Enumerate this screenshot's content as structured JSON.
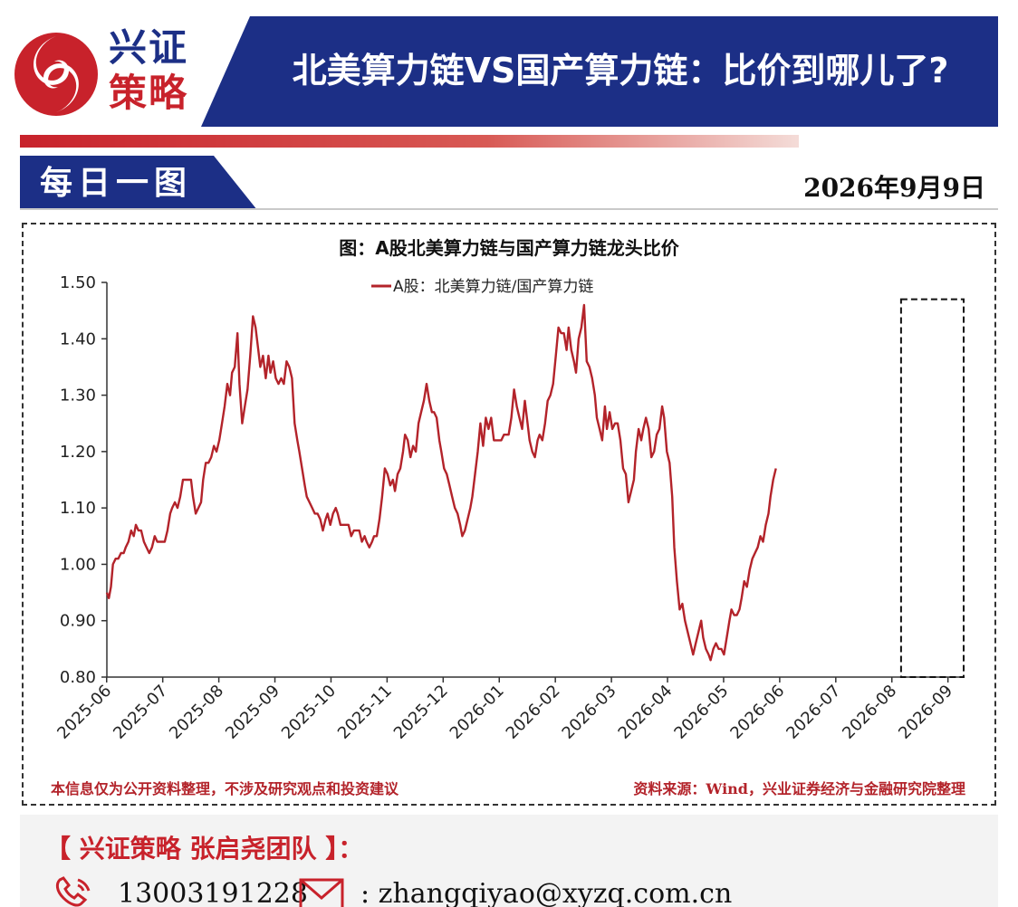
{
  "brand": {
    "line1": "兴证",
    "line2": "策略"
  },
  "header": {
    "title": "北美算力链VS国产算力链：比价到哪儿了?"
  },
  "section": {
    "title": "每日一图",
    "date": "2026年9月9日"
  },
  "colors": {
    "navy": "#1c2f86",
    "red": "#c8222b",
    "line": "#b3232a"
  },
  "footer": {
    "disclaimer": "本信息仅为公开资料整理，不涉及研究观点和投资建议",
    "source": "资料来源：Wind，兴业证券经济与金融研究院整理"
  },
  "contact": {
    "team": "【 兴证策略 张启尧团队 】：",
    "phone": "13003191228",
    "email": ": zhangqiyao@xyzq.com.cn"
  },
  "chart_data": {
    "type": "line",
    "title": "图：A股北美算力链与国产算力链龙头比价",
    "series_name": "A股：北美算力链/国产算力链",
    "ylim": [
      0.8,
      1.5
    ],
    "yticks": [
      "0.80",
      "0.90",
      "1.00",
      "1.10",
      "1.20",
      "1.30",
      "1.40",
      "1.50"
    ],
    "xlim": [
      2025.417,
      2026.69
    ],
    "xticks": [
      "2025-06",
      "2025-07",
      "2025-08",
      "2025-09",
      "2025-10",
      "2025-11",
      "2025-12",
      "2026-01",
      "2026-02",
      "2026-03",
      "2026-04",
      "2026-05",
      "2026-06",
      "2026-07",
      "2026-08",
      "2026-09"
    ],
    "highlight": {
      "x_from": 2026.597,
      "x_to": 2026.69,
      "y_from": 0.8,
      "y_to": 1.47
    },
    "points": [
      [
        2025.417,
        0.95
      ],
      [
        2025.42,
        0.94
      ],
      [
        2025.423,
        0.96
      ],
      [
        2025.426,
        1.0
      ],
      [
        2025.43,
        1.01
      ],
      [
        2025.434,
        1.01
      ],
      [
        2025.438,
        1.02
      ],
      [
        2025.442,
        1.02
      ],
      [
        2025.445,
        1.03
      ],
      [
        2025.449,
        1.04
      ],
      [
        2025.453,
        1.06
      ],
      [
        2025.457,
        1.05
      ],
      [
        2025.46,
        1.07
      ],
      [
        2025.464,
        1.06
      ],
      [
        2025.468,
        1.06
      ],
      [
        2025.472,
        1.04
      ],
      [
        2025.476,
        1.03
      ],
      [
        2025.48,
        1.02
      ],
      [
        2025.484,
        1.03
      ],
      [
        2025.488,
        1.05
      ],
      [
        2025.492,
        1.04
      ],
      [
        2025.496,
        1.04
      ],
      [
        2025.5,
        1.04
      ],
      [
        2025.503,
        1.04
      ],
      [
        2025.507,
        1.06
      ],
      [
        2025.511,
        1.09
      ],
      [
        2025.514,
        1.1
      ],
      [
        2025.518,
        1.11
      ],
      [
        2025.522,
        1.1
      ],
      [
        2025.526,
        1.12
      ],
      [
        2025.53,
        1.15
      ],
      [
        2025.534,
        1.15
      ],
      [
        2025.538,
        1.15
      ],
      [
        2025.542,
        1.15
      ],
      [
        2025.545,
        1.12
      ],
      [
        2025.549,
        1.09
      ],
      [
        2025.553,
        1.1
      ],
      [
        2025.557,
        1.11
      ],
      [
        2025.56,
        1.15
      ],
      [
        2025.564,
        1.18
      ],
      [
        2025.568,
        1.18
      ],
      [
        2025.572,
        1.19
      ],
      [
        2025.576,
        1.21
      ],
      [
        2025.58,
        1.2
      ],
      [
        2025.584,
        1.22
      ],
      [
        2025.588,
        1.25
      ],
      [
        2025.592,
        1.28
      ],
      [
        2025.596,
        1.32
      ],
      [
        2025.6,
        1.3
      ],
      [
        2025.603,
        1.34
      ],
      [
        2025.607,
        1.35
      ],
      [
        2025.611,
        1.41
      ],
      [
        2025.614,
        1.32
      ],
      [
        2025.618,
        1.25
      ],
      [
        2025.622,
        1.28
      ],
      [
        2025.626,
        1.31
      ],
      [
        2025.63,
        1.37
      ],
      [
        2025.634,
        1.44
      ],
      [
        2025.638,
        1.42
      ],
      [
        2025.642,
        1.38
      ],
      [
        2025.645,
        1.35
      ],
      [
        2025.649,
        1.37
      ],
      [
        2025.653,
        1.33
      ],
      [
        2025.657,
        1.37
      ],
      [
        2025.66,
        1.34
      ],
      [
        2025.664,
        1.36
      ],
      [
        2025.668,
        1.33
      ],
      [
        2025.672,
        1.32
      ],
      [
        2025.676,
        1.33
      ],
      [
        2025.68,
        1.32
      ],
      [
        2025.684,
        1.36
      ],
      [
        2025.688,
        1.35
      ],
      [
        2025.692,
        1.33
      ],
      [
        2025.696,
        1.25
      ],
      [
        2025.7,
        1.22
      ],
      [
        2025.703,
        1.2
      ],
      [
        2025.707,
        1.17
      ],
      [
        2025.711,
        1.14
      ],
      [
        2025.714,
        1.12
      ],
      [
        2025.718,
        1.11
      ],
      [
        2025.722,
        1.1
      ],
      [
        2025.726,
        1.09
      ],
      [
        2025.73,
        1.09
      ],
      [
        2025.734,
        1.08
      ],
      [
        2025.738,
        1.06
      ],
      [
        2025.742,
        1.08
      ],
      [
        2025.745,
        1.09
      ],
      [
        2025.749,
        1.07
      ],
      [
        2025.753,
        1.09
      ],
      [
        2025.757,
        1.1
      ],
      [
        2025.76,
        1.09
      ],
      [
        2025.764,
        1.07
      ],
      [
        2025.768,
        1.07
      ],
      [
        2025.772,
        1.07
      ],
      [
        2025.776,
        1.07
      ],
      [
        2025.78,
        1.05
      ],
      [
        2025.784,
        1.06
      ],
      [
        2025.788,
        1.06
      ],
      [
        2025.792,
        1.06
      ],
      [
        2025.796,
        1.04
      ],
      [
        2025.8,
        1.05
      ],
      [
        2025.803,
        1.04
      ],
      [
        2025.807,
        1.03
      ],
      [
        2025.811,
        1.04
      ],
      [
        2025.814,
        1.05
      ],
      [
        2025.818,
        1.05
      ],
      [
        2025.822,
        1.08
      ],
      [
        2025.826,
        1.12
      ],
      [
        2025.83,
        1.17
      ],
      [
        2025.834,
        1.16
      ],
      [
        2025.838,
        1.14
      ],
      [
        2025.842,
        1.15
      ],
      [
        2025.845,
        1.13
      ],
      [
        2025.849,
        1.16
      ],
      [
        2025.853,
        1.17
      ],
      [
        2025.857,
        1.2
      ],
      [
        2025.86,
        1.23
      ],
      [
        2025.864,
        1.22
      ],
      [
        2025.868,
        1.19
      ],
      [
        2025.872,
        1.21
      ],
      [
        2025.876,
        1.2
      ],
      [
        2025.88,
        1.25
      ],
      [
        2025.884,
        1.27
      ],
      [
        2025.888,
        1.29
      ],
      [
        2025.892,
        1.32
      ],
      [
        2025.896,
        1.29
      ],
      [
        2025.9,
        1.27
      ],
      [
        2025.903,
        1.27
      ],
      [
        2025.907,
        1.26
      ],
      [
        2025.911,
        1.22
      ],
      [
        2025.914,
        1.2
      ],
      [
        2025.918,
        1.17
      ],
      [
        2025.922,
        1.16
      ],
      [
        2025.926,
        1.14
      ],
      [
        2025.93,
        1.12
      ],
      [
        2025.934,
        1.1
      ],
      [
        2025.938,
        1.09
      ],
      [
        2025.942,
        1.07
      ],
      [
        2025.945,
        1.05
      ],
      [
        2025.949,
        1.06
      ],
      [
        2025.953,
        1.08
      ],
      [
        2025.957,
        1.1
      ],
      [
        2025.96,
        1.12
      ],
      [
        2025.964,
        1.16
      ],
      [
        2025.968,
        1.2
      ],
      [
        2025.972,
        1.25
      ],
      [
        2025.976,
        1.21
      ],
      [
        2025.98,
        1.26
      ],
      [
        2025.984,
        1.24
      ],
      [
        2025.988,
        1.26
      ],
      [
        2025.992,
        1.22
      ],
      [
        2025.996,
        1.22
      ],
      [
        2026.0,
        1.22
      ],
      [
        2026.003,
        1.22
      ],
      [
        2026.007,
        1.23
      ],
      [
        2026.011,
        1.23
      ],
      [
        2026.014,
        1.23
      ],
      [
        2026.018,
        1.26
      ],
      [
        2026.022,
        1.31
      ],
      [
        2026.026,
        1.28
      ],
      [
        2026.03,
        1.26
      ],
      [
        2026.034,
        1.24
      ],
      [
        2026.038,
        1.29
      ],
      [
        2026.042,
        1.25
      ],
      [
        2026.045,
        1.22
      ],
      [
        2026.049,
        1.2
      ],
      [
        2026.053,
        1.19
      ],
      [
        2026.057,
        1.22
      ],
      [
        2026.06,
        1.23
      ],
      [
        2026.064,
        1.22
      ],
      [
        2026.068,
        1.25
      ],
      [
        2026.072,
        1.29
      ],
      [
        2026.076,
        1.3
      ],
      [
        2026.08,
        1.32
      ],
      [
        2026.084,
        1.37
      ],
      [
        2026.088,
        1.42
      ],
      [
        2026.092,
        1.41
      ],
      [
        2026.096,
        1.41
      ],
      [
        2026.1,
        1.38
      ],
      [
        2026.103,
        1.42
      ],
      [
        2026.107,
        1.38
      ],
      [
        2026.111,
        1.36
      ],
      [
        2026.114,
        1.34
      ],
      [
        2026.118,
        1.4
      ],
      [
        2026.122,
        1.42
      ],
      [
        2026.126,
        1.46
      ],
      [
        2026.13,
        1.36
      ],
      [
        2026.134,
        1.35
      ],
      [
        2026.138,
        1.33
      ],
      [
        2026.142,
        1.3
      ],
      [
        2026.145,
        1.26
      ],
      [
        2026.149,
        1.24
      ],
      [
        2026.153,
        1.22
      ],
      [
        2026.157,
        1.28
      ],
      [
        2026.16,
        1.24
      ],
      [
        2026.164,
        1.27
      ],
      [
        2026.168,
        1.24
      ],
      [
        2026.172,
        1.25
      ],
      [
        2026.176,
        1.25
      ],
      [
        2026.18,
        1.22
      ],
      [
        2026.184,
        1.17
      ],
      [
        2026.188,
        1.16
      ],
      [
        2026.192,
        1.11
      ],
      [
        2026.196,
        1.13
      ],
      [
        2026.2,
        1.15
      ],
      [
        2026.203,
        1.2
      ],
      [
        2026.207,
        1.24
      ],
      [
        2026.211,
        1.22
      ],
      [
        2026.214,
        1.24
      ],
      [
        2026.218,
        1.26
      ],
      [
        2026.222,
        1.24
      ],
      [
        2026.226,
        1.19
      ],
      [
        2026.23,
        1.2
      ],
      [
        2026.234,
        1.23
      ],
      [
        2026.238,
        1.24
      ],
      [
        2026.242,
        1.28
      ],
      [
        2026.245,
        1.26
      ],
      [
        2026.249,
        1.2
      ],
      [
        2026.253,
        1.18
      ],
      [
        2026.257,
        1.12
      ],
      [
        2026.26,
        1.03
      ],
      [
        2026.264,
        0.97
      ],
      [
        2026.268,
        0.92
      ],
      [
        2026.272,
        0.93
      ],
      [
        2026.276,
        0.9
      ],
      [
        2026.28,
        0.88
      ],
      [
        2026.284,
        0.86
      ],
      [
        2026.288,
        0.84
      ],
      [
        2026.292,
        0.86
      ],
      [
        2026.296,
        0.88
      ],
      [
        2026.3,
        0.9
      ],
      [
        2026.303,
        0.87
      ],
      [
        2026.307,
        0.85
      ],
      [
        2026.311,
        0.84
      ],
      [
        2026.314,
        0.83
      ],
      [
        2026.318,
        0.85
      ],
      [
        2026.322,
        0.86
      ],
      [
        2026.326,
        0.85
      ],
      [
        2026.33,
        0.85
      ],
      [
        2026.334,
        0.84
      ],
      [
        2026.338,
        0.87
      ],
      [
        2026.342,
        0.9
      ],
      [
        2026.345,
        0.92
      ],
      [
        2026.349,
        0.91
      ],
      [
        2026.353,
        0.91
      ],
      [
        2026.357,
        0.92
      ],
      [
        2026.36,
        0.94
      ],
      [
        2026.364,
        0.97
      ],
      [
        2026.368,
        0.96
      ],
      [
        2026.372,
        0.99
      ],
      [
        2026.376,
        1.01
      ],
      [
        2026.38,
        1.02
      ],
      [
        2026.384,
        1.03
      ],
      [
        2026.388,
        1.05
      ],
      [
        2026.392,
        1.04
      ],
      [
        2026.396,
        1.07
      ],
      [
        2026.4,
        1.09
      ],
      [
        2026.403,
        1.12
      ],
      [
        2026.407,
        1.15
      ],
      [
        2026.411,
        1.17
      ]
    ]
  }
}
